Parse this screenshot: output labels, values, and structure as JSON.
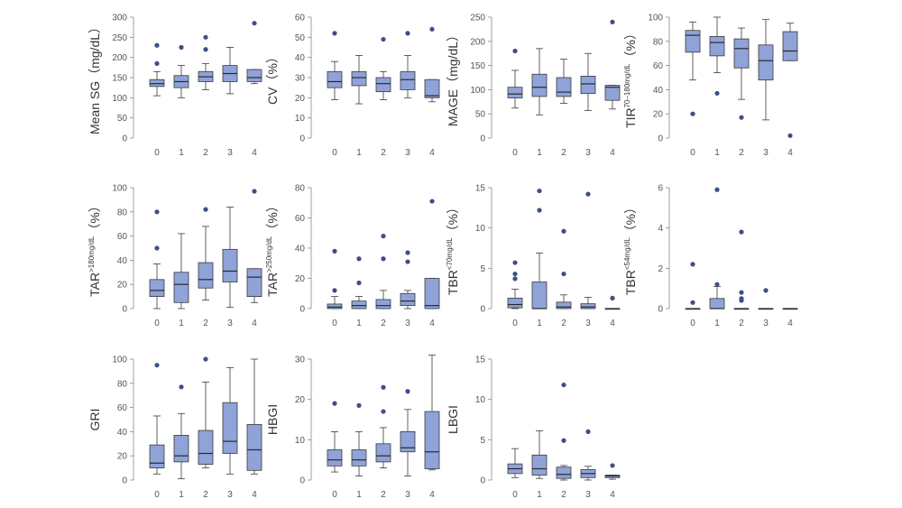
{
  "colors": {
    "box_fill": "#8fa3d8",
    "box_stroke": "#3a3a3a",
    "outlier": "#3d4f86",
    "axis": "#888888"
  },
  "chart_data": [
    {
      "type": "boxplot",
      "ylabel": "Mean SG（mg/dL）",
      "ylim": [
        0,
        300
      ],
      "yticks": [
        "0",
        "50",
        "100",
        "150",
        "200",
        "250",
        "300"
      ],
      "categories": [
        "0",
        "1",
        "2",
        "3",
        "4"
      ],
      "groups": [
        {
          "min": 105,
          "q1": 128,
          "median": 135,
          "q3": 145,
          "max": 165,
          "outliers": [
            185,
            230
          ]
        },
        {
          "min": 100,
          "q1": 125,
          "median": 140,
          "q3": 155,
          "max": 180,
          "outliers": [
            225
          ]
        },
        {
          "min": 120,
          "q1": 140,
          "median": 152,
          "q3": 165,
          "max": 185,
          "outliers": [
            220,
            250
          ]
        },
        {
          "min": 110,
          "q1": 140,
          "median": 160,
          "q3": 180,
          "max": 225,
          "outliers": []
        },
        {
          "min": 135,
          "q1": 140,
          "median": 150,
          "q3": 170,
          "max": 170,
          "outliers": [
            285
          ]
        }
      ]
    },
    {
      "type": "boxplot",
      "ylabel": "CV（%）",
      "ylim": [
        0,
        60
      ],
      "yticks": [
        "0",
        "10",
        "20",
        "30",
        "40",
        "50",
        "60"
      ],
      "categories": [
        "0",
        "1",
        "2",
        "3",
        "4"
      ],
      "groups": [
        {
          "min": 19,
          "q1": 25,
          "median": 28,
          "q3": 33,
          "max": 38,
          "outliers": [
            52
          ]
        },
        {
          "min": 17,
          "q1": 26,
          "median": 30,
          "q3": 33,
          "max": 41,
          "outliers": []
        },
        {
          "min": 19,
          "q1": 23,
          "median": 27,
          "q3": 30,
          "max": 33,
          "outliers": [
            49
          ]
        },
        {
          "min": 20,
          "q1": 24,
          "median": 29,
          "q3": 33,
          "max": 41,
          "outliers": [
            52
          ]
        },
        {
          "min": 18,
          "q1": 20,
          "median": 21,
          "q3": 29,
          "max": 29,
          "outliers": [
            54
          ]
        }
      ]
    },
    {
      "type": "boxplot",
      "ylabel": "MAGE（mg/dL）",
      "ylim": [
        0,
        250
      ],
      "yticks": [
        "0",
        "50",
        "100",
        "150",
        "200",
        "250"
      ],
      "categories": [
        "0",
        "1",
        "2",
        "3",
        "4"
      ],
      "groups": [
        {
          "min": 62,
          "q1": 83,
          "median": 91,
          "q3": 105,
          "max": 140,
          "outliers": [
            180
          ]
        },
        {
          "min": 48,
          "q1": 86,
          "median": 105,
          "q3": 132,
          "max": 185,
          "outliers": []
        },
        {
          "min": 72,
          "q1": 86,
          "median": 95,
          "q3": 125,
          "max": 163,
          "outliers": []
        },
        {
          "min": 57,
          "q1": 92,
          "median": 112,
          "q3": 128,
          "max": 175,
          "outliers": []
        },
        {
          "min": 60,
          "q1": 78,
          "median": 105,
          "q3": 109,
          "max": 109,
          "outliers": [
            240
          ]
        }
      ]
    },
    {
      "type": "boxplot",
      "ylabel": "TIR",
      "ylabel_sup": "70–180mg/dL",
      "ylabel_suffix": "（%）",
      "ylim": [
        0,
        100
      ],
      "yticks": [
        "0",
        "20",
        "40",
        "60",
        "80",
        "100"
      ],
      "categories": [
        "0",
        "1",
        "2",
        "3",
        "4"
      ],
      "groups": [
        {
          "min": 48,
          "q1": 71,
          "median": 85,
          "q3": 89,
          "max": 96,
          "outliers": [
            20
          ]
        },
        {
          "min": 54,
          "q1": 68,
          "median": 79,
          "q3": 84,
          "max": 100,
          "outliers": [
            37
          ]
        },
        {
          "min": 32,
          "q1": 58,
          "median": 74,
          "q3": 82,
          "max": 91,
          "outliers": [
            17
          ]
        },
        {
          "min": 15,
          "q1": 48,
          "median": 64,
          "q3": 77,
          "max": 98,
          "outliers": []
        },
        {
          "min": 64,
          "q1": 64,
          "median": 72,
          "q3": 88,
          "max": 95,
          "outliers": [
            2
          ]
        }
      ]
    },
    {
      "type": "boxplot",
      "ylabel": "TAR",
      "ylabel_sup": ">180mg/dL",
      "ylabel_suffix": "（%）",
      "ylim": [
        0,
        100
      ],
      "yticks": [
        "0",
        "20",
        "40",
        "60",
        "80",
        "100"
      ],
      "categories": [
        "0",
        "1",
        "2",
        "3",
        "4"
      ],
      "groups": [
        {
          "min": 0,
          "q1": 10,
          "median": 15,
          "q3": 24,
          "max": 37,
          "outliers": [
            50,
            80
          ]
        },
        {
          "min": 0,
          "q1": 5,
          "median": 20,
          "q3": 30,
          "max": 62,
          "outliers": []
        },
        {
          "min": 7,
          "q1": 17,
          "median": 24,
          "q3": 38,
          "max": 68,
          "outliers": [
            82
          ]
        },
        {
          "min": 1,
          "q1": 22,
          "median": 31,
          "q3": 49,
          "max": 84,
          "outliers": []
        },
        {
          "min": 5,
          "q1": 10,
          "median": 26,
          "q3": 33,
          "max": 33,
          "outliers": [
            97
          ]
        }
      ]
    },
    {
      "type": "boxplot",
      "ylabel": "TAR",
      "ylabel_sup": ">250mg/dL",
      "ylabel_suffix": "（%）",
      "ylim": [
        0,
        80
      ],
      "yticks": [
        "0",
        "20",
        "40",
        "60",
        "80"
      ],
      "categories": [
        "0",
        "1",
        "2",
        "3",
        "4"
      ],
      "groups": [
        {
          "min": 0,
          "q1": 0,
          "median": 1,
          "q3": 3,
          "max": 8,
          "outliers": [
            12,
            38
          ]
        },
        {
          "min": 0,
          "q1": 0,
          "median": 2,
          "q3": 5,
          "max": 8,
          "outliers": [
            17,
            33
          ]
        },
        {
          "min": 0,
          "q1": 0,
          "median": 2,
          "q3": 6,
          "max": 12,
          "outliers": [
            33,
            48
          ]
        },
        {
          "min": 0,
          "q1": 2,
          "median": 5,
          "q3": 10,
          "max": 12,
          "outliers": [
            31,
            37
          ]
        },
        {
          "min": 0,
          "q1": 0,
          "median": 2,
          "q3": 20,
          "max": 20,
          "outliers": [
            71
          ]
        }
      ]
    },
    {
      "type": "boxplot",
      "ylabel": "TBR",
      "ylabel_sup": "<70mg/dL",
      "ylabel_suffix": "（%）",
      "ylim": [
        0,
        15
      ],
      "yticks": [
        "0",
        "5",
        "10",
        "15"
      ],
      "categories": [
        "0",
        "1",
        "2",
        "3",
        "4"
      ],
      "groups": [
        {
          "min": 0,
          "q1": 0.1,
          "median": 0.5,
          "q3": 1.3,
          "max": 2.4,
          "outliers": [
            3.7,
            4.3,
            5.7
          ]
        },
        {
          "min": 0,
          "q1": 0,
          "median": 0,
          "q3": 3.3,
          "max": 6.9,
          "outliers": [
            12.2,
            14.6
          ]
        },
        {
          "min": 0,
          "q1": 0,
          "median": 0.2,
          "q3": 0.8,
          "max": 1.7,
          "outliers": [
            4.3,
            9.6
          ]
        },
        {
          "min": 0,
          "q1": 0,
          "median": 0.2,
          "q3": 0.6,
          "max": 1.4,
          "outliers": [
            14.2
          ]
        },
        {
          "min": 0,
          "q1": 0,
          "median": 0,
          "q3": 0,
          "max": 0,
          "outliers": [
            1.3
          ]
        }
      ]
    },
    {
      "type": "boxplot",
      "ylabel": "TBR",
      "ylabel_sup": "<54mg/dL",
      "ylabel_suffix": "（%）",
      "ylim": [
        0,
        6
      ],
      "yticks": [
        "0",
        "2",
        "4",
        "6"
      ],
      "categories": [
        "0",
        "1",
        "2",
        "3",
        "4"
      ],
      "groups": [
        {
          "min": 0,
          "q1": 0,
          "median": 0,
          "q3": 0,
          "max": 0,
          "outliers": [
            0.3,
            2.2
          ]
        },
        {
          "min": 0,
          "q1": 0,
          "median": 0,
          "q3": 0.5,
          "max": 1.1,
          "outliers": [
            1.2,
            5.9
          ]
        },
        {
          "min": 0,
          "q1": 0,
          "median": 0,
          "q3": 0,
          "max": 0,
          "outliers": [
            0.4,
            0.5,
            0.8,
            3.8
          ]
        },
        {
          "min": 0,
          "q1": 0,
          "median": 0,
          "q3": 0,
          "max": 0,
          "outliers": [
            0.9
          ]
        },
        {
          "min": 0,
          "q1": 0,
          "median": 0,
          "q3": 0,
          "max": 0,
          "outliers": []
        }
      ]
    },
    {
      "type": "boxplot",
      "ylabel": "GRI",
      "ylim": [
        0,
        100
      ],
      "yticks": [
        "0",
        "20",
        "40",
        "60",
        "80",
        "100"
      ],
      "categories": [
        "0",
        "1",
        "2",
        "3",
        "4"
      ],
      "groups": [
        {
          "min": 5,
          "q1": 10,
          "median": 14,
          "q3": 29,
          "max": 53,
          "outliers": [
            95
          ]
        },
        {
          "min": 1,
          "q1": 15,
          "median": 20,
          "q3": 37,
          "max": 55,
          "outliers": [
            77
          ]
        },
        {
          "min": 10,
          "q1": 13,
          "median": 22,
          "q3": 41,
          "max": 81,
          "outliers": [
            100
          ]
        },
        {
          "min": 5,
          "q1": 22,
          "median": 32,
          "q3": 64,
          "max": 93,
          "outliers": []
        },
        {
          "min": 5,
          "q1": 8,
          "median": 25,
          "q3": 46,
          "max": 100,
          "outliers": []
        }
      ]
    },
    {
      "type": "boxplot",
      "ylabel": "HBGI",
      "ylim": [
        0,
        30
      ],
      "yticks": [
        "0",
        "10",
        "20",
        "30"
      ],
      "categories": [
        "0",
        "1",
        "2",
        "3",
        "4"
      ],
      "groups": [
        {
          "min": 2,
          "q1": 3.5,
          "median": 5,
          "q3": 7.5,
          "max": 12,
          "outliers": [
            19
          ]
        },
        {
          "min": 1,
          "q1": 3.5,
          "median": 5,
          "q3": 7.5,
          "max": 12,
          "outliers": [
            18.5
          ]
        },
        {
          "min": 3,
          "q1": 4.5,
          "median": 6,
          "q3": 9,
          "max": 13,
          "outliers": [
            17,
            23
          ]
        },
        {
          "min": 1,
          "q1": 7,
          "median": 8,
          "q3": 12,
          "max": 17.5,
          "outliers": [
            22
          ]
        },
        {
          "min": 2.5,
          "q1": 2.8,
          "median": 7,
          "q3": 17,
          "max": 31,
          "outliers": []
        }
      ]
    },
    {
      "type": "boxplot",
      "ylabel": "LBGI",
      "ylim": [
        0,
        15
      ],
      "yticks": [
        "0",
        "5",
        "10",
        "15"
      ],
      "categories": [
        "0",
        "1",
        "2",
        "3",
        "4"
      ],
      "groups": [
        {
          "min": 0.3,
          "q1": 0.8,
          "median": 1.4,
          "q3": 2,
          "max": 3.9,
          "outliers": []
        },
        {
          "min": 0.2,
          "q1": 0.6,
          "median": 1.4,
          "q3": 3.1,
          "max": 6.1,
          "outliers": []
        },
        {
          "min": 0,
          "q1": 0.2,
          "median": 0.7,
          "q3": 1.6,
          "max": 1.8,
          "outliers": [
            4.9,
            11.8
          ]
        },
        {
          "min": 0,
          "q1": 0.3,
          "median": 0.8,
          "q3": 1.3,
          "max": 1.7,
          "outliers": [
            6
          ]
        },
        {
          "min": 0.1,
          "q1": 0.3,
          "median": 0.5,
          "q3": 0.6,
          "max": 0.6,
          "outliers": [
            1.8
          ]
        }
      ]
    }
  ]
}
